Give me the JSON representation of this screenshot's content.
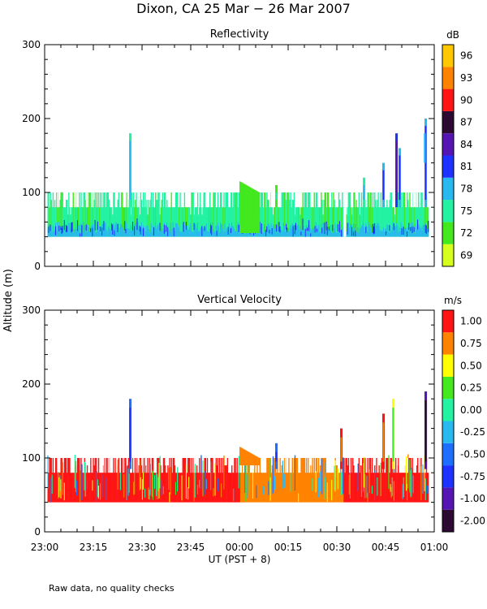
{
  "figure": {
    "title": "Dixon, CA 25 Mar − 26 Mar 2007",
    "ylabel": "Altitude (m)",
    "xlabel": "UT  (PST + 8)",
    "note": "Raw data, no quality checks",
    "xticks": [
      "23:00",
      "23:15",
      "23:30",
      "23:45",
      "00:00",
      "00:15",
      "00:30",
      "00:45",
      "01:00"
    ]
  },
  "chart_data": [
    {
      "type": "heatmap",
      "title": "Reflectivity",
      "colorbar_unit": "dB",
      "colorbar_levels": [
        "69",
        "72",
        "75",
        "78",
        "81",
        "84",
        "87",
        "90",
        "93",
        "96"
      ],
      "colorbar_colors": [
        "#d7ff1e",
        "#43e81e",
        "#22f2a2",
        "#29b8f0",
        "#1e32ff",
        "#5514b4",
        "#2d0a32",
        "#ff1414",
        "#ff8200",
        "#ffc800"
      ],
      "x_range_minutes": [
        0,
        120
      ],
      "ylim": [
        0,
        300
      ],
      "yticks": [
        0,
        100,
        200,
        300
      ],
      "features": {
        "main_layer_altitude_m": [
          40,
          100
        ],
        "base_altitude_m": 40,
        "typical_top_altitude_m": 80,
        "base_level_db": 78,
        "body_level_db": 75,
        "spikes": [
          {
            "t": 26,
            "top": 180,
            "level": 75
          },
          {
            "t": 71,
            "top": 110,
            "level": 72
          },
          {
            "t": 98,
            "top": 120,
            "level": 75
          },
          {
            "t": 104,
            "top": 140,
            "level": 78
          },
          {
            "t": 108,
            "top": 180,
            "level": 81
          },
          {
            "t": 109,
            "top": 160,
            "level": 78
          },
          {
            "t": 117,
            "top": 200,
            "level": 78
          }
        ]
      }
    },
    {
      "type": "heatmap",
      "title": "Vertical Velocity",
      "colorbar_unit": "m/s",
      "colorbar_levels": [
        "-2.00",
        "-1.00",
        "-0.75",
        "-0.50",
        "-0.25",
        "0.00",
        "0.25",
        "0.50",
        "0.75",
        "1.00"
      ],
      "colorbar_colors": [
        "#2d0a32",
        "#5514b4",
        "#1e32ff",
        "#1e6eff",
        "#29b8f0",
        "#22f2a2",
        "#43e81e",
        "#ffff00",
        "#ff8200",
        "#ff1414"
      ],
      "x_range_minutes": [
        0,
        120
      ],
      "ylim": [
        0,
        300
      ],
      "yticks": [
        0,
        100,
        200,
        300
      ],
      "features": {
        "main_layer_altitude_m": [
          40,
          100
        ],
        "dominant_value_ms": 1.0,
        "late_segment_value_ms": 0.75,
        "spikes": [
          {
            "t": 26,
            "top": 180,
            "level": -0.5
          },
          {
            "t": 71,
            "top": 120,
            "level": -0.5
          },
          {
            "t": 91,
            "top": 140,
            "level": 1.0
          },
          {
            "t": 104,
            "top": 160,
            "level": 1.0
          },
          {
            "t": 107,
            "top": 180,
            "level": 0.5
          },
          {
            "t": 117,
            "top": 190,
            "level": -1.0
          }
        ]
      }
    }
  ]
}
